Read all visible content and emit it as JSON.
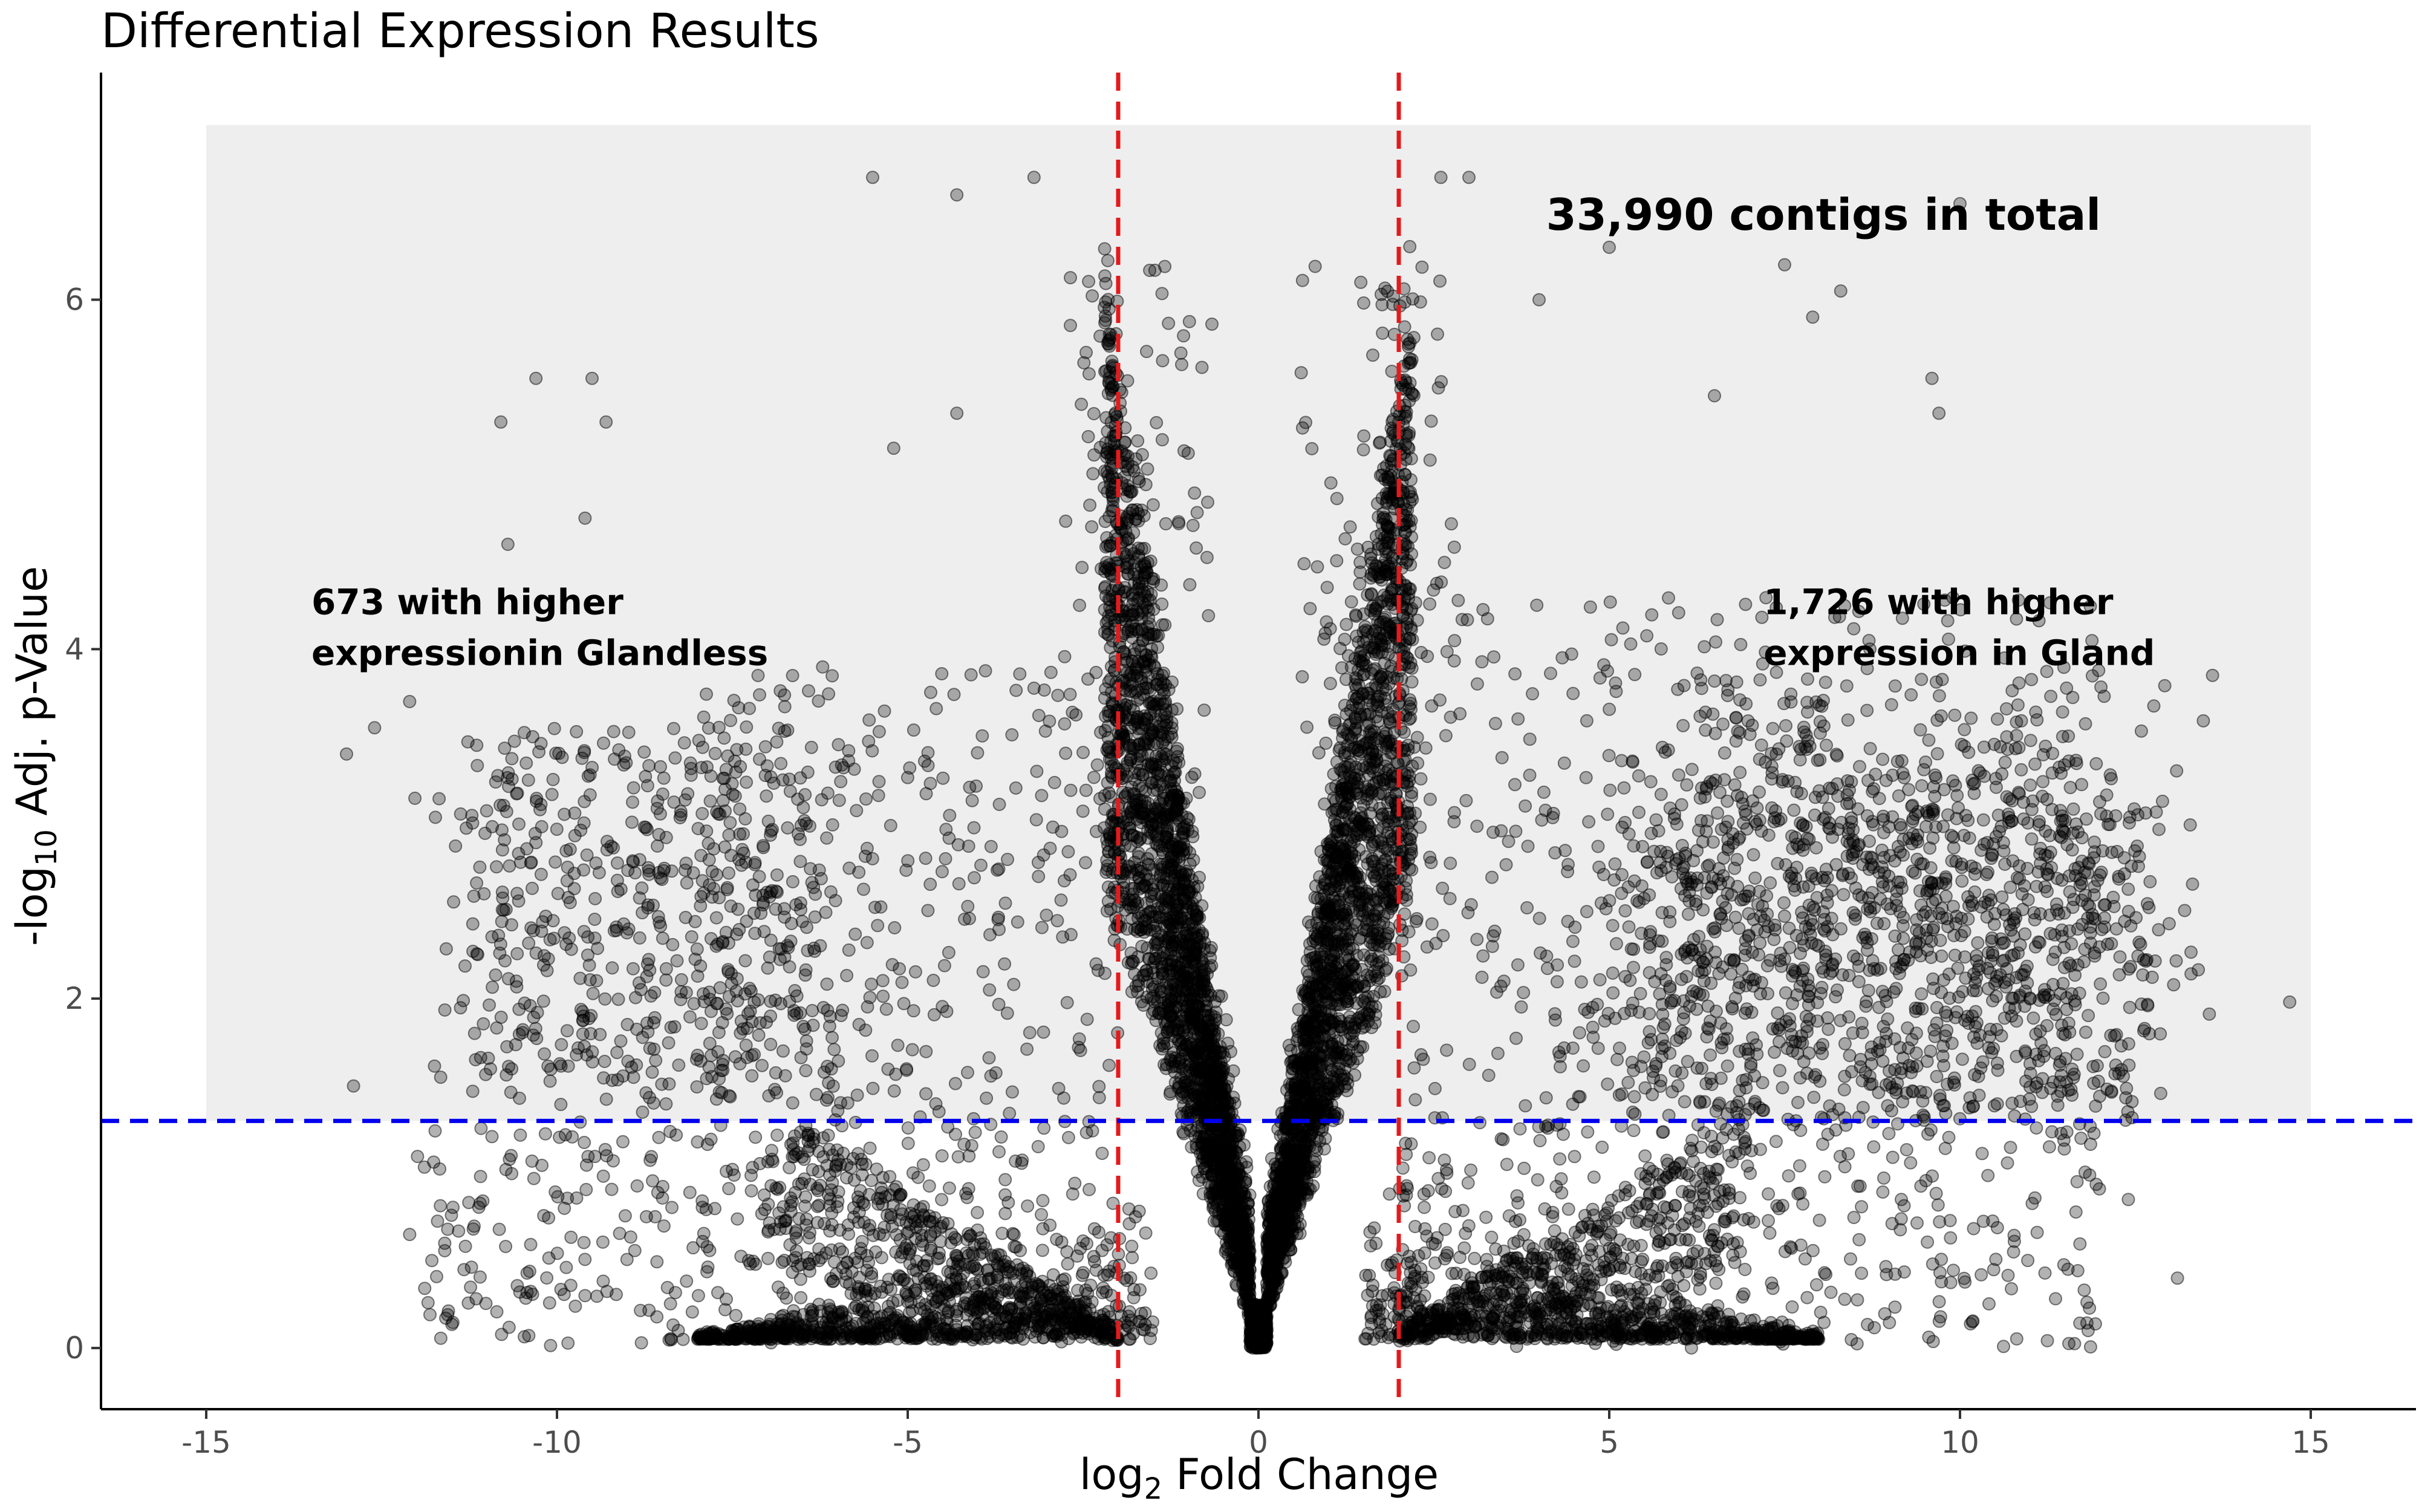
{
  "chart_data": {
    "type": "scatter",
    "title": "Differential Expression Results",
    "xlabel_pre": "log",
    "xlabel_sub": "2",
    "xlabel_post": " Fold Change",
    "ylabel_pre": "-log",
    "ylabel_sub": "10",
    "ylabel_post": " Adj. p-Value",
    "xlim": [
      -16.5,
      16.5
    ],
    "ylim": [
      -0.35,
      7.3
    ],
    "xticks": [
      -15,
      -10,
      -5,
      0,
      5,
      10,
      15
    ],
    "xtick_labels": [
      "-15",
      "-10",
      "-5",
      "0",
      "5",
      "10",
      "15"
    ],
    "yticks": [
      0,
      2,
      4,
      6
    ],
    "ytick_labels": [
      "0",
      "2",
      "4",
      "6"
    ],
    "grid": false,
    "background_region": {
      "x": [
        -15,
        15
      ],
      "y": [
        1.3,
        7
      ],
      "color": "#eeeeee"
    },
    "threshold_lines": [
      {
        "axis": "x",
        "value": -2,
        "color": "#e41a1c",
        "style": "dashed"
      },
      {
        "axis": "x",
        "value": 2,
        "color": "#e41a1c",
        "style": "dashed"
      },
      {
        "axis": "y",
        "value": 1.3,
        "color": "#0000ee",
        "style": "dashed"
      }
    ],
    "point_color": "#000000",
    "point_alpha": 0.3,
    "total_contigs": 33990,
    "annotations": [
      {
        "name": "total",
        "lines": [
          "33,990 contigs in total"
        ],
        "x": 4.1,
        "y": 6.4,
        "size": "big"
      },
      {
        "name": "glandless",
        "lines": [
          "673 with higher",
          "expressionin Glandless"
        ],
        "x": -13.5,
        "y": 4.2,
        "size": "normal"
      },
      {
        "name": "gland",
        "lines": [
          "1,726 with higher",
          "expression in Gland"
        ],
        "x": 7.2,
        "y": 4.2,
        "size": "normal"
      }
    ],
    "sample_points": [
      {
        "x": -5.5,
        "y": 6.7
      },
      {
        "x": -4.3,
        "y": 6.6
      },
      {
        "x": -3.2,
        "y": 6.7
      },
      {
        "x": 3.0,
        "y": 6.7
      },
      {
        "x": 2.6,
        "y": 6.7
      },
      {
        "x": 10.0,
        "y": 6.55
      },
      {
        "x": -10.3,
        "y": 5.55
      },
      {
        "x": -9.5,
        "y": 5.55
      },
      {
        "x": -10.8,
        "y": 5.3
      },
      {
        "x": -9.3,
        "y": 5.3
      },
      {
        "x": -10.7,
        "y": 4.6
      },
      {
        "x": -9.6,
        "y": 4.75
      },
      {
        "x": -13.0,
        "y": 3.4
      },
      {
        "x": -12.6,
        "y": 3.55
      },
      {
        "x": -12.1,
        "y": 3.7
      },
      {
        "x": -12.9,
        "y": 1.5
      },
      {
        "x": -12.1,
        "y": 0.65
      },
      {
        "x": -11.6,
        "y": 0.6
      },
      {
        "x": -9.6,
        "y": 0.3
      },
      {
        "x": 13.6,
        "y": 3.85
      },
      {
        "x": 14.7,
        "y": 1.98
      },
      {
        "x": 13.1,
        "y": 0.4
      },
      {
        "x": 12.4,
        "y": 0.85
      },
      {
        "x": 7.5,
        "y": 6.2
      },
      {
        "x": 8.3,
        "y": 6.05
      },
      {
        "x": 7.9,
        "y": 5.9
      },
      {
        "x": 9.6,
        "y": 5.55
      },
      {
        "x": 9.7,
        "y": 5.35
      },
      {
        "x": -4.3,
        "y": 5.35
      },
      {
        "x": -5.2,
        "y": 5.15
      },
      {
        "x": 5.0,
        "y": 6.3
      },
      {
        "x": 4.0,
        "y": 6.0
      },
      {
        "x": 6.5,
        "y": 5.45
      }
    ]
  }
}
